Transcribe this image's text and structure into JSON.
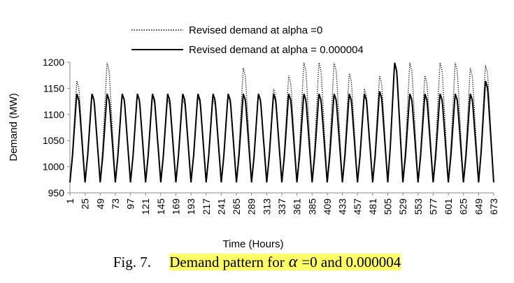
{
  "chart_data": {
    "type": "line",
    "title": "",
    "xlabel": "Time (Hours)",
    "ylabel": "Demand (MW)",
    "xlim": [
      1,
      673
    ],
    "ylim": [
      950,
      1200
    ],
    "yticks": [
      950,
      1000,
      1050,
      1100,
      1150,
      1200
    ],
    "xticks": [
      1,
      25,
      49,
      73,
      97,
      121,
      145,
      169,
      193,
      217,
      241,
      265,
      289,
      313,
      337,
      361,
      385,
      409,
      433,
      457,
      481,
      505,
      529,
      553,
      577,
      601,
      625,
      649,
      673
    ],
    "legend_position": "top",
    "series": [
      {
        "name": "Revised demand at alpha =0",
        "style": "dotted",
        "period_hours": 24,
        "daily_min": 970,
        "daily_max": [
          1165,
          1140,
          1200,
          1140,
          1140,
          1135,
          1130,
          1130,
          1135,
          1130,
          1135,
          1190,
          1140,
          1150,
          1175,
          1200,
          1200,
          1200,
          1180,
          1150,
          1175,
          1200,
          1200,
          1175,
          1200,
          1200,
          1190,
          1195
        ]
      },
      {
        "name": "Revised demand at alpha = 0.000004",
        "style": "solid",
        "period_hours": 24,
        "daily_min": 970,
        "daily_max": [
          1140,
          1140,
          1140,
          1140,
          1140,
          1140,
          1140,
          1140,
          1140,
          1140,
          1140,
          1140,
          1140,
          1140,
          1140,
          1140,
          1140,
          1140,
          1140,
          1140,
          1145,
          1200,
          1140,
          1140,
          1140,
          1140,
          1140,
          1165
        ]
      }
    ]
  },
  "caption": {
    "prefix": "Fig. 7.",
    "text_before": "Demand pattern for",
    "symbol": "α",
    "text_after": "=0 and 0.000004"
  }
}
